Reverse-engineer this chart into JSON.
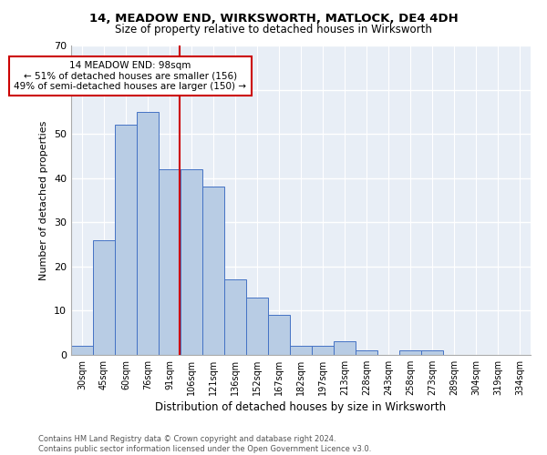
{
  "title1": "14, MEADOW END, WIRKSWORTH, MATLOCK, DE4 4DH",
  "title2": "Size of property relative to detached houses in Wirksworth",
  "xlabel": "Distribution of detached houses by size in Wirksworth",
  "ylabel": "Number of detached properties",
  "categories": [
    "30sqm",
    "45sqm",
    "60sqm",
    "76sqm",
    "91sqm",
    "106sqm",
    "121sqm",
    "136sqm",
    "152sqm",
    "167sqm",
    "182sqm",
    "197sqm",
    "213sqm",
    "228sqm",
    "243sqm",
    "258sqm",
    "273sqm",
    "289sqm",
    "304sqm",
    "319sqm",
    "334sqm"
  ],
  "values": [
    2,
    26,
    52,
    55,
    42,
    42,
    38,
    17,
    13,
    9,
    2,
    2,
    3,
    1,
    0,
    1,
    1,
    0,
    0,
    0,
    0
  ],
  "bar_color": "#b8cce4",
  "bar_edge_color": "#4472c4",
  "vline_color": "#cc0000",
  "annotation_text": "14 MEADOW END: 98sqm\n← 51% of detached houses are smaller (156)\n49% of semi-detached houses are larger (150) →",
  "annotation_box_color": "#ffffff",
  "annotation_box_edge": "#cc0000",
  "ylim": [
    0,
    70
  ],
  "yticks": [
    0,
    10,
    20,
    30,
    40,
    50,
    60,
    70
  ],
  "footer": "Contains HM Land Registry data © Crown copyright and database right 2024.\nContains public sector information licensed under the Open Government Licence v3.0.",
  "bg_color": "#e8eef6",
  "grid_color": "#ffffff"
}
